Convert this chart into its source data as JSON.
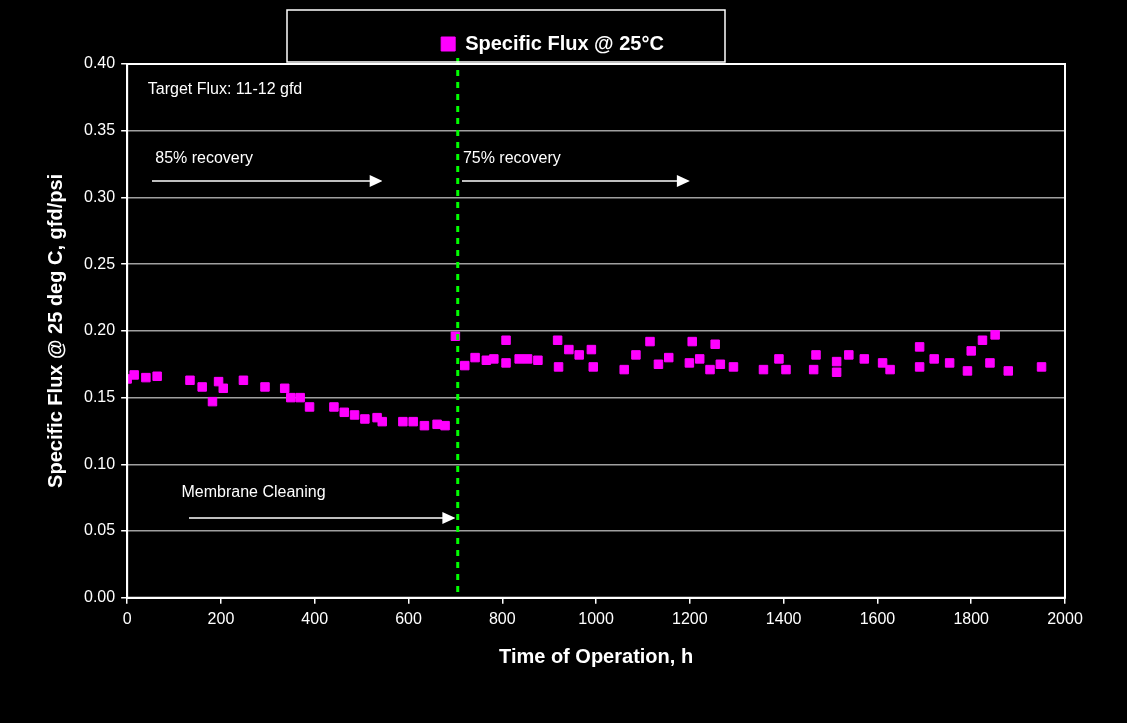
{
  "chart_data": {
    "type": "scatter",
    "xlabel": "Time of Operation, h",
    "ylabel": "Specific Flux @ 25 deg C, gfd/psi",
    "xlim": [
      0,
      2000
    ],
    "xticks": [
      0,
      200,
      400,
      600,
      800,
      1000,
      1200,
      1400,
      1600,
      1800,
      2000
    ],
    "ylim": [
      0,
      0.4
    ],
    "yticks": [
      {
        "value": 0,
        "label": "0.00"
      },
      {
        "value": 0.05,
        "label": "0.05"
      },
      {
        "value": 0.1,
        "label": "0.10"
      },
      {
        "value": 0.15,
        "label": "0.15"
      },
      {
        "value": 0.2,
        "label": "0.20"
      },
      {
        "value": 0.25,
        "label": "0.25"
      },
      {
        "value": 0.3,
        "label": "0.30"
      },
      {
        "value": 0.35,
        "label": "0.35"
      },
      {
        "value": 0.4,
        "label": "0.40"
      }
    ],
    "grid": "y",
    "legend": "top",
    "marker": "square",
    "series": [
      {
        "name": "Specific Flux @ 25°C",
        "color": "#ff00ff",
        "x": [
          0,
          15,
          40,
          64,
          134,
          160,
          182,
          195,
          205,
          248,
          294,
          336,
          349,
          369,
          389,
          441,
          463,
          485,
          507,
          533,
          544,
          588,
          610,
          634,
          661,
          678,
          700,
          720,
          742,
          766,
          782,
          808,
          808,
          836,
          854,
          876,
          918,
          920,
          942,
          964,
          990,
          994,
          1060,
          1085,
          1115,
          1133,
          1155,
          1199,
          1205,
          1221,
          1243,
          1254,
          1265,
          1293,
          1357,
          1390,
          1405,
          1464,
          1469,
          1513,
          1513,
          1539,
          1572,
          1611,
          1627,
          1690,
          1690,
          1721,
          1754,
          1792,
          1800,
          1824,
          1840,
          1851,
          1879,
          1950
        ],
        "values": [
          0.164,
          0.167,
          0.165,
          0.166,
          0.163,
          0.158,
          0.147,
          0.162,
          0.157,
          0.163,
          0.158,
          0.157,
          0.15,
          0.15,
          0.143,
          0.143,
          0.139,
          0.137,
          0.134,
          0.135,
          0.132,
          0.132,
          0.132,
          0.129,
          0.13,
          0.129,
          0.196,
          0.174,
          0.18,
          0.178,
          0.179,
          0.193,
          0.176,
          0.179,
          0.179,
          0.178,
          0.193,
          0.173,
          0.186,
          0.182,
          0.186,
          0.173,
          0.171,
          0.182,
          0.192,
          0.175,
          0.18,
          0.176,
          0.192,
          0.179,
          0.171,
          0.19,
          0.175,
          0.173,
          0.171,
          0.179,
          0.171,
          0.171,
          0.182,
          0.177,
          0.169,
          0.182,
          0.179,
          0.176,
          0.171,
          0.188,
          0.173,
          0.179,
          0.176,
          0.17,
          0.185,
          0.193,
          0.176,
          0.197,
          0.17,
          0.173
        ]
      }
    ],
    "ref_lines": [
      {
        "axis": "x",
        "value": 705,
        "color": "#00ff00",
        "line_style": "dashed"
      }
    ],
    "annotations": [
      "Target Flux: 11-12 gfd",
      "85% recovery",
      "75% recovery",
      "Membrane Cleaning"
    ]
  }
}
